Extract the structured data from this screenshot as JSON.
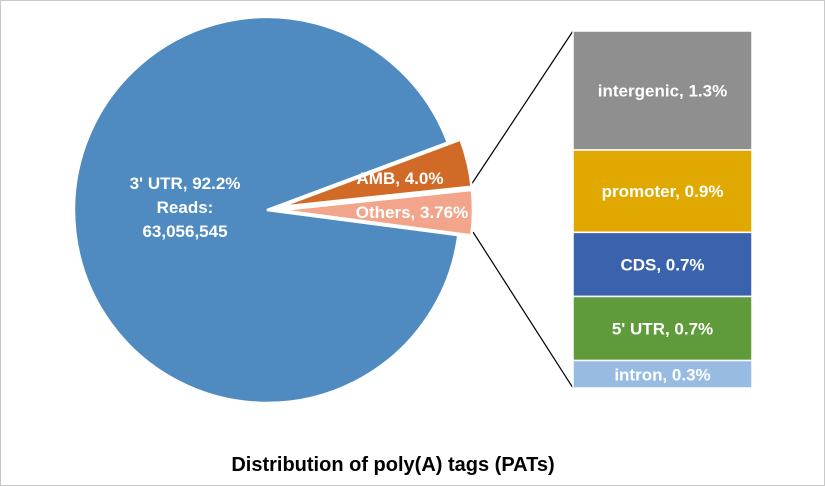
{
  "chart_data": [
    {
      "type": "pie",
      "title": "Distribution of poly(A) tags (PATs)",
      "slices": [
        {
          "name": "3' UTR",
          "value": 92.2,
          "color": "#4f8bc0",
          "label_lines": [
            "3' UTR, 92.2%",
            "Reads:",
            "63,056,545"
          ]
        },
        {
          "name": "AMB",
          "value": 4.0,
          "color": "#d06a26",
          "label_lines": [
            "AMB, 4.0%"
          ]
        },
        {
          "name": "Others",
          "value": 3.76,
          "color": "#f2a58b",
          "label_lines": [
            "Others, 3.76%"
          ]
        }
      ]
    },
    {
      "type": "bar",
      "orientation": "stacked-column",
      "breakdown_of": "Others",
      "segments": [
        {
          "name": "intergenic",
          "value": 1.3,
          "label": "intergenic, 1.3%",
          "color": "#8f8f8f"
        },
        {
          "name": "promoter",
          "value": 0.9,
          "label": "promoter, 0.9%",
          "color": "#e1a900"
        },
        {
          "name": "CDS",
          "value": 0.7,
          "label": "CDS, 0.7%",
          "color": "#3a62ad"
        },
        {
          "name": "5' UTR",
          "value": 0.7,
          "label": "5' UTR, 0.7%",
          "color": "#5f9a3b"
        },
        {
          "name": "intron",
          "value": 0.3,
          "label": "intron, 0.3%",
          "color": "#98bbe2"
        }
      ]
    }
  ]
}
